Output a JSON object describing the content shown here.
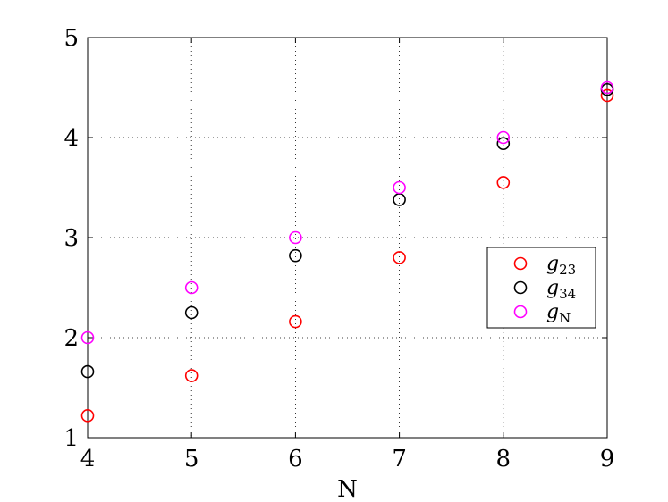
{
  "chart_data": {
    "type": "scatter",
    "title": "",
    "xlabel": "N",
    "ylabel": "",
    "xlim": [
      4,
      9
    ],
    "ylim": [
      1,
      5
    ],
    "xticks": [
      4,
      5,
      6,
      7,
      8,
      9
    ],
    "yticks": [
      1,
      2,
      3,
      4,
      5
    ],
    "grid": true,
    "legend_position": "right",
    "x": [
      4,
      5,
      6,
      7,
      8,
      9
    ],
    "series": [
      {
        "name": "g23",
        "name_base": "g",
        "name_sub": "23",
        "color": "#ff0000",
        "marker": "circle-open",
        "values": [
          1.22,
          1.62,
          2.16,
          2.8,
          3.55,
          4.42
        ]
      },
      {
        "name": "g34",
        "name_base": "g",
        "name_sub": "34",
        "color": "#000000",
        "marker": "circle-open",
        "values": [
          1.66,
          2.25,
          2.82,
          3.38,
          3.94,
          4.48
        ]
      },
      {
        "name": "gN",
        "name_base": "g",
        "name_sub": "N",
        "color": "#ff00ff",
        "marker": "circle-open",
        "values": [
          2.0,
          2.5,
          3.0,
          3.5,
          4.0,
          4.5
        ]
      }
    ]
  }
}
